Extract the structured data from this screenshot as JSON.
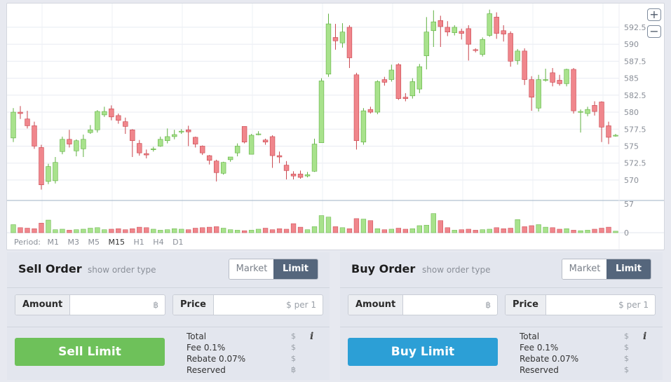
{
  "chart": {
    "price_ticks": [
      "592.5",
      "590",
      "587.5",
      "585",
      "582.5",
      "580",
      "577.5",
      "575",
      "572.5",
      "570"
    ],
    "volume_ticks": [
      "57",
      "0"
    ],
    "zoom_in_symbol": "+",
    "zoom_out_symbol": "−",
    "period_label": "Period:",
    "periods": [
      "M1",
      "M3",
      "M5",
      "M15",
      "H1",
      "H4",
      "D1"
    ],
    "active_period": "M15",
    "colors": {
      "up": "#a8e28c",
      "up_stroke": "#5fb040",
      "down": "#f0868c",
      "down_stroke": "#c8444c"
    }
  },
  "chart_data": {
    "type": "candlestick",
    "price_range": [
      567,
      596
    ],
    "volume_range": [
      0,
      57
    ],
    "candles": [
      [
        576.2,
        580.0,
        580.6,
        575.6,
        16
      ],
      [
        580.0,
        579.8,
        580.9,
        579.0,
        10
      ],
      [
        579.0,
        578.0,
        580.2,
        577.6,
        9
      ],
      [
        578.0,
        575.0,
        578.6,
        574.6,
        8
      ],
      [
        574.8,
        569.3,
        575.2,
        568.6,
        19
      ],
      [
        569.8,
        572.0,
        572.4,
        569.4,
        25
      ],
      [
        569.9,
        572.6,
        573.4,
        569.5,
        6
      ],
      [
        574.2,
        576.0,
        576.4,
        573.8,
        7
      ],
      [
        576.0,
        575.3,
        577.4,
        574.8,
        5
      ],
      [
        574.3,
        575.8,
        576.0,
        573.5,
        6
      ],
      [
        574.6,
        576.0,
        576.7,
        573.4,
        7
      ],
      [
        577.0,
        577.4,
        578.1,
        576.8,
        9
      ],
      [
        577.4,
        580.1,
        580.3,
        577.0,
        10
      ],
      [
        579.6,
        580.1,
        580.8,
        579.3,
        6
      ],
      [
        580.5,
        579.3,
        581.0,
        578.8,
        7
      ],
      [
        579.5,
        578.8,
        579.8,
        578.3,
        8
      ],
      [
        578.6,
        577.9,
        579.2,
        576.8,
        6
      ],
      [
        577.4,
        575.8,
        577.5,
        573.4,
        8
      ],
      [
        575.4,
        574.0,
        575.9,
        573.6,
        11
      ],
      [
        573.9,
        573.7,
        574.5,
        573.2,
        10
      ],
      [
        574.5,
        574.6,
        574.9,
        574.2,
        7
      ],
      [
        575.0,
        576.0,
        576.4,
        574.9,
        5
      ],
      [
        575.8,
        576.4,
        577.6,
        575.4,
        6
      ],
      [
        576.4,
        576.7,
        577.4,
        576.0,
        8
      ],
      [
        577.1,
        577.2,
        577.5,
        576.8,
        7
      ],
      [
        577.4,
        577.1,
        578.0,
        575.0,
        6
      ],
      [
        576.3,
        575.3,
        576.4,
        574.8,
        9
      ],
      [
        575.0,
        574.0,
        575.1,
        573.7,
        10
      ],
      [
        573.6,
        572.9,
        573.7,
        572.3,
        11
      ],
      [
        572.8,
        571.1,
        573.0,
        569.8,
        12
      ],
      [
        571.0,
        572.6,
        572.7,
        570.8,
        9
      ],
      [
        573.0,
        573.4,
        573.4,
        572.7,
        6
      ],
      [
        574.0,
        575.0,
        575.4,
        573.5,
        5
      ],
      [
        577.9,
        575.6,
        577.9,
        575.4,
        4
      ],
      [
        573.8,
        576.6,
        576.8,
        573.8,
        5
      ],
      [
        576.8,
        576.8,
        577.2,
        576.6,
        7
      ],
      [
        575.9,
        575.6,
        576.1,
        575.2,
        9
      ],
      [
        576.4,
        573.6,
        576.6,
        571.8,
        6
      ],
      [
        573.6,
        573.4,
        574.2,
        572.5,
        8
      ],
      [
        572.2,
        571.4,
        572.8,
        570.1,
        7
      ],
      [
        570.9,
        570.6,
        571.3,
        570.1,
        18
      ],
      [
        570.9,
        570.4,
        571.4,
        570.2,
        11
      ],
      [
        570.6,
        570.8,
        571.2,
        570.4,
        6
      ],
      [
        571.3,
        575.3,
        576.1,
        571.2,
        12
      ],
      [
        575.5,
        584.6,
        585.0,
        575.5,
        34
      ],
      [
        585.6,
        593.0,
        594.5,
        585.2,
        31
      ],
      [
        591.0,
        590.5,
        593.0,
        589.2,
        12
      ],
      [
        590.2,
        591.8,
        593.1,
        589.5,
        10
      ],
      [
        592.5,
        588.0,
        592.8,
        586.5,
        8
      ],
      [
        585.5,
        575.8,
        585.8,
        574.5,
        28
      ],
      [
        575.6,
        580.2,
        580.6,
        575.2,
        27
      ],
      [
        580.4,
        580.0,
        580.8,
        579.8,
        24
      ],
      [
        580.0,
        584.5,
        584.7,
        579.7,
        8
      ],
      [
        584.8,
        584.4,
        585.2,
        583.9,
        6
      ],
      [
        584.8,
        586.2,
        587.0,
        584.5,
        7
      ],
      [
        587.0,
        582.0,
        587.2,
        581.8,
        9
      ],
      [
        582.2,
        582.0,
        582.8,
        581.6,
        7
      ],
      [
        582.4,
        584.5,
        585.0,
        582.0,
        8
      ],
      [
        583.4,
        586.7,
        587.1,
        582.8,
        14
      ],
      [
        588.3,
        591.8,
        594.0,
        586.3,
        15
      ],
      [
        592.0,
        593.3,
        595.0,
        589.6,
        38
      ],
      [
        593.5,
        592.6,
        594.2,
        589.6,
        24
      ],
      [
        592.5,
        591.8,
        593.4,
        591.2,
        10
      ],
      [
        591.7,
        592.5,
        592.8,
        591.3,
        5
      ],
      [
        591.9,
        591.6,
        592.3,
        590.7,
        6
      ],
      [
        592.3,
        590.0,
        592.8,
        587.6,
        7
      ],
      [
        589.2,
        589.1,
        589.4,
        588.8,
        5
      ],
      [
        588.5,
        590.7,
        591.0,
        588.2,
        6
      ],
      [
        591.3,
        594.5,
        595.1,
        591.1,
        7
      ],
      [
        594.0,
        591.6,
        594.7,
        590.8,
        10
      ],
      [
        592.0,
        591.5,
        592.8,
        590.4,
        8
      ],
      [
        591.6,
        587.5,
        591.9,
        586.7,
        9
      ],
      [
        587.6,
        589.0,
        589.3,
        587.0,
        26
      ],
      [
        589.0,
        584.8,
        589.4,
        584.0,
        12
      ],
      [
        584.8,
        582.2,
        585.3,
        580.2,
        14
      ],
      [
        580.6,
        584.8,
        585.5,
        580.1,
        16
      ],
      [
        584.7,
        584.8,
        586.4,
        584.5,
        11
      ],
      [
        585.8,
        584.4,
        586.5,
        583.8,
        10
      ],
      [
        584.7,
        584.2,
        585.5,
        583.9,
        7
      ],
      [
        584.2,
        586.3,
        586.4,
        583.8,
        8
      ],
      [
        586.3,
        580.2,
        586.5,
        579.8,
        5
      ],
      [
        580.0,
        580.1,
        580.4,
        577.0,
        4
      ],
      [
        579.8,
        580.4,
        580.8,
        579.4,
        5
      ],
      [
        581.0,
        580.1,
        581.6,
        579.5,
        7
      ],
      [
        581.5,
        577.8,
        581.6,
        575.6,
        9
      ],
      [
        578.0,
        576.3,
        578.6,
        575.3,
        11
      ],
      [
        576.5,
        576.6,
        576.8,
        576.4,
        3
      ]
    ]
  },
  "sell": {
    "title": "Sell Order",
    "subtitle": "show order type",
    "market_label": "Market",
    "limit_label": "Limit",
    "amount_label": "Amount",
    "amount_unit": "฿",
    "price_label": "Price",
    "price_unit": "$ per 1",
    "button_label": "Sell Limit",
    "button_color": "#6ec15a",
    "summary": [
      "Total",
      "Fee 0.1%",
      "Rebate 0.07%",
      "Reserved"
    ],
    "summary_units": [
      "$",
      "$",
      "$",
      "฿"
    ]
  },
  "buy": {
    "title": "Buy Order",
    "subtitle": "show order type",
    "market_label": "Market",
    "limit_label": "Limit",
    "amount_label": "Amount",
    "amount_unit": "฿",
    "price_label": "Price",
    "price_unit": "$ per 1",
    "button_label": "Buy Limit",
    "button_color": "#2c9fd6",
    "summary": [
      "Total",
      "Fee 0.1%",
      "Rebate 0.07%",
      "Reserved"
    ],
    "summary_units": [
      "$",
      "$",
      "$",
      "$"
    ]
  },
  "info_icon_glyph": "i"
}
